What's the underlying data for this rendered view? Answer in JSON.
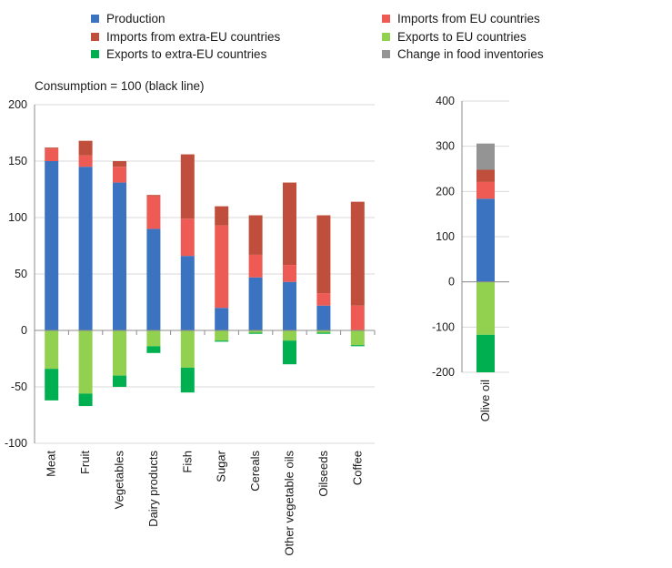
{
  "legend": [
    {
      "label": "Production",
      "color": "#3b73c0"
    },
    {
      "label": "Imports from EU countries",
      "color": "#ee5b55"
    },
    {
      "label": "Imports from extra-EU countries",
      "color": "#bf4f3c"
    },
    {
      "label": "Exports to EU countries",
      "color": "#92d050"
    },
    {
      "label": "Exports to extra-EU countries",
      "color": "#00b050"
    },
    {
      "label": "Change in food inventories",
      "color": "#949494"
    }
  ],
  "note": "Consumption = 100 (black line)",
  "chart_data": [
    {
      "type": "bar",
      "stacked": true,
      "categories": [
        "Meat",
        "Fruit",
        "Vegetables",
        "Dairy products",
        "Fish",
        "Sugar",
        "Cereals",
        "Other vegetable oils",
        "Oilseeds",
        "Coffee"
      ],
      "ylim": [
        -100,
        200
      ],
      "yticks": [
        200,
        150,
        100,
        50,
        0,
        -50,
        -100
      ],
      "grid": true,
      "series": [
        {
          "name": "Production",
          "color": "#3b73c0",
          "values": [
            150,
            145,
            131,
            90,
            66,
            20,
            47,
            43,
            22,
            0
          ]
        },
        {
          "name": "Imports from EU countries",
          "color": "#ee5b55",
          "values": [
            11,
            10,
            14,
            29,
            33,
            73,
            20,
            15,
            11,
            22
          ]
        },
        {
          "name": "Imports from extra-EU countries",
          "color": "#bf4f3c",
          "values": [
            1,
            13,
            5,
            1,
            57,
            17,
            35,
            73,
            69,
            92
          ]
        },
        {
          "name": "Exports to EU countries",
          "color": "#92d050",
          "values": [
            -34,
            -56,
            -40,
            -14,
            -33,
            -9,
            -2,
            -9,
            -2,
            -13
          ]
        },
        {
          "name": "Exports to extra-EU countries",
          "color": "#00b050",
          "values": [
            -28,
            -11,
            -10,
            -6,
            -22,
            -1,
            -1,
            -21,
            -1,
            -1
          ]
        }
      ]
    },
    {
      "type": "bar",
      "stacked": true,
      "categories": [
        "Olive oil"
      ],
      "ylim": [
        -200,
        400
      ],
      "yticks": [
        400,
        300,
        200,
        100,
        0,
        -100,
        -200
      ],
      "grid": true,
      "series": [
        {
          "name": "Production",
          "color": "#3b73c0",
          "values": [
            184
          ]
        },
        {
          "name": "Imports from EU countries",
          "color": "#ee5b55",
          "values": [
            37
          ]
        },
        {
          "name": "Imports from extra-EU countries",
          "color": "#bf4f3c",
          "values": [
            27
          ]
        },
        {
          "name": "Change in food inventories",
          "color": "#949494",
          "values": [
            58
          ]
        },
        {
          "name": "Exports to EU countries",
          "color": "#92d050",
          "values": [
            -117
          ]
        },
        {
          "name": "Exports to extra-EU countries",
          "color": "#00b050",
          "values": [
            -83
          ]
        }
      ]
    }
  ]
}
